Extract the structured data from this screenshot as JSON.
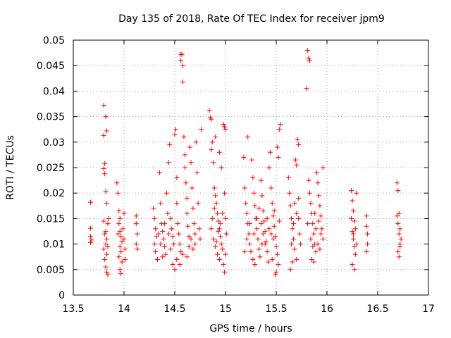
{
  "chart_data": {
    "type": "scatter",
    "title": "Day 135 of 2018, Rate Of TEC Index for receiver jpm9",
    "xlabel": "GPS time / hours",
    "ylabel": "ROTI / TECUs",
    "xlim": [
      13.5,
      17
    ],
    "ylim": [
      0,
      0.05
    ],
    "grid": true,
    "marker": "+",
    "color": "#ff0000",
    "x_ticks": [
      "13.5",
      "14",
      "14.5",
      "15",
      "15.5",
      "16",
      "16.5",
      "17"
    ],
    "y_ticks": [
      "0",
      "0.005",
      "0.01",
      "0.015",
      "0.02",
      "0.025",
      "0.03",
      "0.035",
      "0.04",
      "0.045",
      "0.05"
    ],
    "series": [
      {
        "name": "jpm9",
        "points": [
          [
            13.67,
            0.0182
          ],
          [
            13.67,
            0.0131
          ],
          [
            13.67,
            0.0115
          ],
          [
            13.67,
            0.0103
          ],
          [
            13.68,
            0.0108
          ],
          [
            13.8,
            0.0372
          ],
          [
            13.8,
            0.0313
          ],
          [
            13.81,
            0.0258
          ],
          [
            13.8,
            0.0248
          ],
          [
            13.81,
            0.0238
          ],
          [
            13.82,
            0.035
          ],
          [
            13.83,
            0.0322
          ],
          [
            13.82,
            0.0203
          ],
          [
            13.83,
            0.018
          ],
          [
            13.8,
            0.0145
          ],
          [
            13.81,
            0.012
          ],
          [
            13.82,
            0.01
          ],
          [
            13.8,
            0.009
          ],
          [
            13.83,
            0.008
          ],
          [
            13.81,
            0.007
          ],
          [
            13.82,
            0.0055
          ],
          [
            13.83,
            0.0045
          ],
          [
            13.84,
            0.004
          ],
          [
            13.84,
            0.014
          ],
          [
            13.84,
            0.0095
          ],
          [
            13.82,
            0.0125
          ],
          [
            13.83,
            0.011
          ],
          [
            13.85,
            0.015
          ],
          [
            13.93,
            0.022
          ],
          [
            13.94,
            0.02
          ],
          [
            13.95,
            0.0165
          ],
          [
            13.96,
            0.015
          ],
          [
            13.95,
            0.014
          ],
          [
            13.96,
            0.0125
          ],
          [
            13.97,
            0.0115
          ],
          [
            13.98,
            0.0105
          ],
          [
            13.96,
            0.0095
          ],
          [
            13.97,
            0.0085
          ],
          [
            13.95,
            0.0075
          ],
          [
            13.98,
            0.0065
          ],
          [
            13.96,
            0.005
          ],
          [
            13.97,
            0.0042
          ],
          [
            13.99,
            0.013
          ],
          [
            14.0,
            0.016
          ],
          [
            14.0,
            0.011
          ],
          [
            14.01,
            0.009
          ],
          [
            14.01,
            0.007
          ],
          [
            13.94,
            0.012
          ],
          [
            14.12,
            0.0155
          ],
          [
            14.12,
            0.014
          ],
          [
            14.13,
            0.012
          ],
          [
            14.12,
            0.01
          ],
          [
            14.13,
            0.009
          ],
          [
            14.29,
            0.017
          ],
          [
            14.3,
            0.015
          ],
          [
            14.31,
            0.013
          ],
          [
            14.32,
            0.0115
          ],
          [
            14.3,
            0.01
          ],
          [
            14.31,
            0.0085
          ],
          [
            14.33,
            0.007
          ],
          [
            14.35,
            0.024
          ],
          [
            14.36,
            0.018
          ],
          [
            14.37,
            0.014
          ],
          [
            14.38,
            0.0125
          ],
          [
            14.39,
            0.011
          ],
          [
            14.4,
            0.0095
          ],
          [
            14.41,
            0.008
          ],
          [
            14.42,
            0.02
          ],
          [
            14.43,
            0.016
          ],
          [
            14.44,
            0.026
          ],
          [
            14.45,
            0.0295
          ],
          [
            14.46,
            0.015
          ],
          [
            14.47,
            0.013
          ],
          [
            14.48,
            0.0115
          ],
          [
            14.49,
            0.01
          ],
          [
            14.5,
            0.0315
          ],
          [
            14.51,
            0.0325
          ],
          [
            14.52,
            0.023
          ],
          [
            14.52,
            0.018
          ],
          [
            14.53,
            0.014
          ],
          [
            14.54,
            0.012
          ],
          [
            14.55,
            0.01
          ],
          [
            14.56,
            0.0085
          ],
          [
            14.56,
            0.0472
          ],
          [
            14.57,
            0.0472
          ],
          [
            14.56,
            0.046
          ],
          [
            14.58,
            0.045
          ],
          [
            14.58,
            0.0418
          ],
          [
            14.59,
            0.031
          ],
          [
            14.6,
            0.0275
          ],
          [
            14.6,
            0.025
          ],
          [
            14.61,
            0.022
          ],
          [
            14.62,
            0.019
          ],
          [
            14.62,
            0.016
          ],
          [
            14.63,
            0.0135
          ],
          [
            14.64,
            0.0115
          ],
          [
            14.64,
            0.0095
          ],
          [
            14.65,
            0.029
          ],
          [
            14.66,
            0.026
          ],
          [
            14.67,
            0.021
          ],
          [
            14.68,
            0.017
          ],
          [
            14.69,
            0.014
          ],
          [
            14.7,
            0.012
          ],
          [
            14.7,
            0.01
          ],
          [
            14.71,
            0.03
          ],
          [
            14.72,
            0.024
          ],
          [
            14.73,
            0.018
          ],
          [
            14.74,
            0.013
          ],
          [
            14.75,
            0.011
          ],
          [
            14.76,
            0.0325
          ],
          [
            14.48,
            0.006
          ],
          [
            14.5,
            0.005
          ],
          [
            14.52,
            0.007
          ],
          [
            14.55,
            0.006
          ],
          [
            14.58,
            0.008
          ],
          [
            14.4,
            0.014
          ],
          [
            14.44,
            0.012
          ],
          [
            14.46,
            0.009
          ],
          [
            14.38,
            0.0075
          ],
          [
            14.36,
            0.01
          ],
          [
            14.34,
            0.012
          ],
          [
            14.62,
            0.0075
          ],
          [
            14.66,
            0.011
          ],
          [
            14.68,
            0.009
          ],
          [
            14.84,
            0.0362
          ],
          [
            14.85,
            0.0348
          ],
          [
            14.86,
            0.0345
          ],
          [
            14.87,
            0.03
          ],
          [
            14.86,
            0.0285
          ],
          [
            14.88,
            0.026
          ],
          [
            14.89,
            0.021
          ],
          [
            14.9,
            0.0195
          ],
          [
            14.91,
            0.018
          ],
          [
            14.92,
            0.016
          ],
          [
            14.93,
            0.0145
          ],
          [
            14.94,
            0.013
          ],
          [
            14.95,
            0.0115
          ],
          [
            14.96,
            0.01
          ],
          [
            14.97,
            0.009
          ],
          [
            14.98,
            0.0335
          ],
          [
            14.99,
            0.033
          ],
          [
            15.0,
            0.0325
          ],
          [
            15.0,
            0.015
          ],
          [
            15.01,
            0.012
          ],
          [
            15.0,
            0.008
          ],
          [
            14.98,
            0.006
          ],
          [
            14.99,
            0.0045
          ],
          [
            14.86,
            0.013
          ],
          [
            14.88,
            0.011
          ],
          [
            14.9,
            0.0095
          ],
          [
            14.92,
            0.008
          ],
          [
            14.94,
            0.007
          ],
          [
            14.87,
            0.015
          ],
          [
            14.89,
            0.017
          ],
          [
            14.91,
            0.0105
          ],
          [
            14.93,
            0.0125
          ],
          [
            14.95,
            0.014
          ],
          [
            14.97,
            0.016
          ],
          [
            14.99,
            0.02
          ],
          [
            14.96,
            0.025
          ],
          [
            14.94,
            0.028
          ],
          [
            14.9,
            0.031
          ],
          [
            15.18,
            0.027
          ],
          [
            15.19,
            0.021
          ],
          [
            15.2,
            0.018
          ],
          [
            15.21,
            0.016
          ],
          [
            15.22,
            0.014
          ],
          [
            15.22,
            0.031
          ],
          [
            15.23,
            0.012
          ],
          [
            15.24,
            0.01
          ],
          [
            15.25,
            0.0085
          ],
          [
            15.26,
            0.0265
          ],
          [
            15.27,
            0.023
          ],
          [
            15.28,
            0.02
          ],
          [
            15.29,
            0.0175
          ],
          [
            15.3,
            0.015
          ],
          [
            15.31,
            0.013
          ],
          [
            15.32,
            0.011
          ],
          [
            15.33,
            0.009
          ],
          [
            15.34,
            0.0075
          ],
          [
            15.35,
            0.0225
          ],
          [
            15.36,
            0.0195
          ],
          [
            15.37,
            0.0165
          ],
          [
            15.38,
            0.0145
          ],
          [
            15.39,
            0.0125
          ],
          [
            15.4,
            0.0105
          ],
          [
            15.41,
            0.0085
          ],
          [
            15.42,
            0.0065
          ],
          [
            15.43,
            0.025
          ],
          [
            15.44,
            0.028
          ],
          [
            15.45,
            0.021
          ],
          [
            15.46,
            0.018
          ],
          [
            15.47,
            0.0155
          ],
          [
            15.48,
            0.0135
          ],
          [
            15.49,
            0.0115
          ],
          [
            15.5,
            0.0095
          ],
          [
            15.51,
            0.008
          ],
          [
            15.51,
            0.029
          ],
          [
            15.52,
            0.027
          ],
          [
            15.53,
            0.0325
          ],
          [
            15.54,
            0.0335
          ],
          [
            15.52,
            0.006
          ],
          [
            15.5,
            0.0045
          ],
          [
            15.49,
            0.004
          ],
          [
            15.27,
            0.007
          ],
          [
            15.29,
            0.006
          ],
          [
            15.31,
            0.015
          ],
          [
            15.33,
            0.017
          ],
          [
            15.35,
            0.014
          ],
          [
            15.37,
            0.012
          ],
          [
            15.39,
            0.01
          ],
          [
            15.41,
            0.015
          ],
          [
            15.43,
            0.013
          ],
          [
            15.45,
            0.012
          ],
          [
            15.47,
            0.011
          ],
          [
            15.28,
            0.012
          ],
          [
            15.24,
            0.014
          ],
          [
            15.21,
            0.011
          ],
          [
            15.19,
            0.0085
          ],
          [
            15.36,
            0.01
          ],
          [
            15.46,
            0.007
          ],
          [
            15.48,
            0.0165
          ],
          [
            15.53,
            0.0145
          ],
          [
            15.62,
            0.023
          ],
          [
            15.63,
            0.02
          ],
          [
            15.64,
            0.0175
          ],
          [
            15.65,
            0.015
          ],
          [
            15.66,
            0.013
          ],
          [
            15.67,
            0.011
          ],
          [
            15.68,
            0.009
          ],
          [
            15.69,
            0.0265
          ],
          [
            15.7,
            0.0255
          ],
          [
            15.7,
            0.007
          ],
          [
            15.71,
            0.0305
          ],
          [
            15.72,
            0.0295
          ],
          [
            15.72,
            0.015
          ],
          [
            15.73,
            0.012
          ],
          [
            15.74,
            0.01
          ],
          [
            15.64,
            0.005
          ],
          [
            15.66,
            0.0065
          ],
          [
            15.68,
            0.018
          ],
          [
            15.7,
            0.016
          ],
          [
            15.72,
            0.019
          ],
          [
            15.65,
            0.01
          ],
          [
            15.67,
            0.014
          ],
          [
            15.81,
            0.048
          ],
          [
            15.82,
            0.0465
          ],
          [
            15.83,
            0.046
          ],
          [
            15.8,
            0.0405
          ],
          [
            15.82,
            0.0225
          ],
          [
            15.83,
            0.02
          ],
          [
            15.84,
            0.018
          ],
          [
            15.85,
            0.016
          ],
          [
            15.86,
            0.014
          ],
          [
            15.87,
            0.012
          ],
          [
            15.88,
            0.01
          ],
          [
            15.89,
            0.0085
          ],
          [
            15.9,
            0.024
          ],
          [
            15.91,
            0.022
          ],
          [
            15.92,
            0.0195
          ],
          [
            15.93,
            0.0175
          ],
          [
            15.94,
            0.0155
          ],
          [
            15.95,
            0.013
          ],
          [
            15.96,
            0.011
          ],
          [
            15.85,
            0.007
          ],
          [
            15.87,
            0.0065
          ],
          [
            15.89,
            0.013
          ],
          [
            15.91,
            0.01
          ],
          [
            15.93,
            0.009
          ],
          [
            15.81,
            0.014
          ],
          [
            15.84,
            0.011
          ],
          [
            15.86,
            0.0095
          ],
          [
            15.88,
            0.016
          ],
          [
            15.92,
            0.0145
          ],
          [
            15.94,
            0.012
          ],
          [
            15.96,
            0.025
          ],
          [
            16.24,
            0.0205
          ],
          [
            16.25,
            0.0185
          ],
          [
            16.26,
            0.0165
          ],
          [
            16.27,
            0.0145
          ],
          [
            16.25,
            0.0125
          ],
          [
            16.26,
            0.011
          ],
          [
            16.27,
            0.0095
          ],
          [
            16.28,
            0.008
          ],
          [
            16.25,
            0.006
          ],
          [
            16.27,
            0.005
          ],
          [
            16.29,
            0.02
          ],
          [
            16.28,
            0.013
          ],
          [
            16.26,
            0.012
          ],
          [
            16.29,
            0.01
          ],
          [
            16.24,
            0.015
          ],
          [
            16.39,
            0.0155
          ],
          [
            16.39,
            0.0135
          ],
          [
            16.4,
            0.012
          ],
          [
            16.4,
            0.01
          ],
          [
            16.39,
            0.0085
          ],
          [
            16.69,
            0.022
          ],
          [
            16.7,
            0.0205
          ],
          [
            16.71,
            0.016
          ],
          [
            16.7,
            0.014
          ],
          [
            16.71,
            0.012
          ],
          [
            16.72,
            0.01
          ],
          [
            16.7,
            0.0085
          ],
          [
            16.71,
            0.0075
          ],
          [
            16.72,
            0.013
          ],
          [
            16.73,
            0.011
          ],
          [
            16.69,
            0.0155
          ],
          [
            16.72,
            0.0095
          ]
        ]
      }
    ]
  }
}
